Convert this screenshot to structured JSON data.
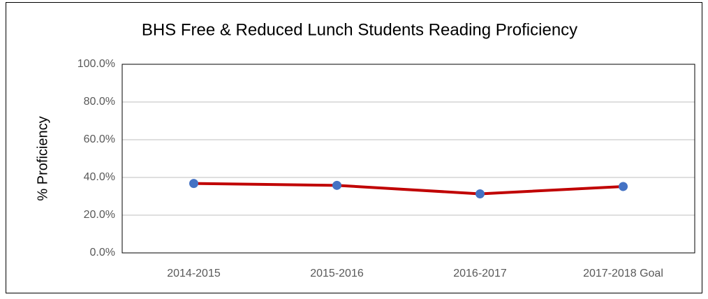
{
  "chart_data": {
    "type": "line",
    "title": "BHS Free & Reduced Lunch Students Reading Proficiency",
    "y_label": "% Proficiency",
    "categories": [
      "2014-2015",
      "2015-2016",
      "2016-2017",
      "2017-2018 Goal"
    ],
    "series": [
      {
        "name": "Reading Proficiency",
        "color": "#c00000",
        "marker_color": "#4472c4",
        "values": [
          36.8,
          35.8,
          31.3,
          35.2
        ]
      }
    ],
    "ylim": [
      0,
      100
    ],
    "yticks": [
      {
        "value": 0,
        "label": "0.0%"
      },
      {
        "value": 20,
        "label": "20.0%"
      },
      {
        "value": 40,
        "label": "40.0%"
      },
      {
        "value": 60,
        "label": "60.0%"
      },
      {
        "value": 80,
        "label": "80.0%"
      },
      {
        "value": 100,
        "label": "100.0%"
      }
    ],
    "grid": true
  }
}
